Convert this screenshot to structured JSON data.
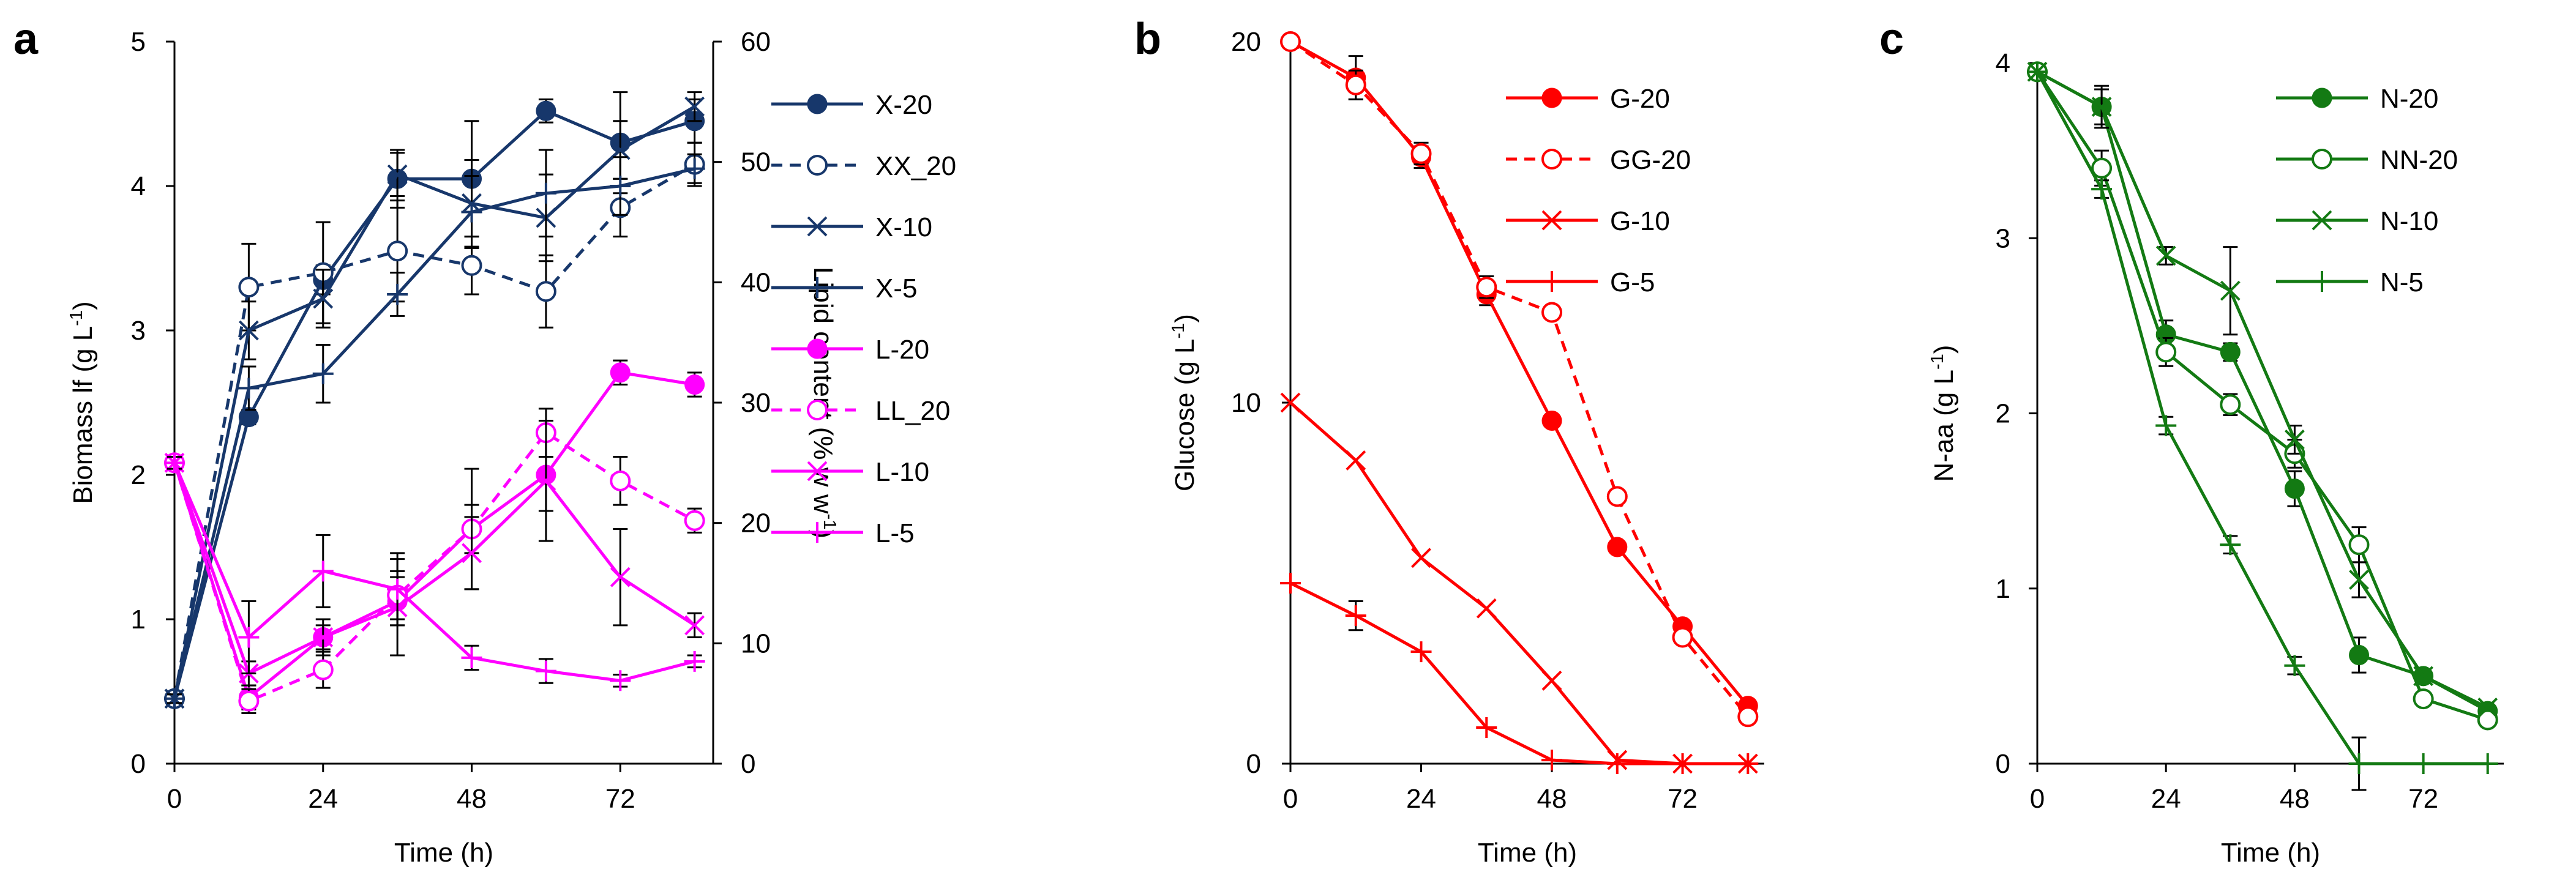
{
  "chart_data": [
    {
      "panel_label": "a",
      "type": "line",
      "xlabel": "Time (h)",
      "ylabel": "Biomass lf (g L-1)",
      "y2label": "Lipid content (% w w-1)",
      "x_ticks": [
        "0",
        "24",
        "48",
        "72"
      ],
      "y_ticks": [
        "0",
        "1",
        "2",
        "3",
        "4",
        "5"
      ],
      "y2_ticks": [
        "0",
        "10",
        "20",
        "30",
        "40",
        "50",
        "60"
      ],
      "xlim": [
        0,
        87
      ],
      "ylim": [
        0,
        5
      ],
      "y2lim": [
        0,
        60
      ],
      "x": [
        0,
        12,
        24,
        36,
        48,
        60,
        72,
        84
      ],
      "series": [
        {
          "name": "X-20",
          "axis": "left",
          "color": "#17376b",
          "dash": false,
          "marker": "filled-circle",
          "values": [
            0.45,
            2.4,
            3.35,
            4.05,
            4.05,
            4.52,
            4.3,
            4.45
          ],
          "errors": [
            0.03,
            0.05,
            0.1,
            0.2,
            0.4,
            0.08,
            0.35,
            0.15
          ]
        },
        {
          "name": "XX_20",
          "axis": "left",
          "color": "#17376b",
          "dash": true,
          "marker": "open-circle",
          "values": [
            0.45,
            3.3,
            3.4,
            3.55,
            3.45,
            3.27,
            3.85,
            4.15
          ],
          "errors": [
            0.03,
            0.3,
            0.35,
            0.35,
            0.2,
            0.25,
            0.2,
            0.15
          ]
        },
        {
          "name": "X-10",
          "axis": "left",
          "color": "#17376b",
          "dash": false,
          "marker": "x",
          "values": [
            0.45,
            3.0,
            3.22,
            4.08,
            3.88,
            3.78,
            4.25,
            4.55
          ],
          "errors": [
            0.03,
            0.2,
            0.2,
            0.15,
            0.3,
            0.3,
            0.2,
            0.1
          ]
        },
        {
          "name": "X-5",
          "axis": "left",
          "color": "#17376b",
          "dash": false,
          "marker": "plus",
          "values": [
            0.45,
            2.6,
            2.7,
            3.25,
            3.82,
            3.95,
            4.0,
            4.12
          ],
          "errors": [
            0.03,
            0.15,
            0.2,
            0.15,
            0.25,
            0.3,
            0.2,
            0.1
          ]
        },
        {
          "name": "L-20",
          "axis": "right",
          "color": "#ff00ff",
          "dash": false,
          "marker": "filled-circle",
          "values": [
            25,
            5.5,
            10.5,
            13.5,
            19.5,
            24,
            32.5,
            31.5
          ],
          "errors": [
            0.5,
            1,
            1.5,
            2,
            5,
            3,
            1,
            1
          ]
        },
        {
          "name": "LL_20",
          "axis": "right",
          "color": "#ff00ff",
          "dash": true,
          "marker": "open-circle",
          "values": [
            25,
            5.2,
            7.8,
            14,
            19.5,
            27.5,
            23.5,
            20.2
          ],
          "errors": [
            0.5,
            1,
            1.5,
            2,
            2,
            2,
            2,
            1
          ]
        },
        {
          "name": "L-10",
          "axis": "right",
          "color": "#ff00ff",
          "dash": false,
          "marker": "x",
          "values": [
            25,
            7.5,
            10.5,
            13,
            17.5,
            23.5,
            15.5,
            11.5
          ],
          "errors": [
            0.5,
            1,
            1,
            4,
            3,
            5,
            4,
            1
          ]
        },
        {
          "name": "L-5",
          "axis": "right",
          "color": "#ff00ff",
          "dash": false,
          "marker": "plus",
          "values": [
            25,
            10.5,
            16,
            14.5,
            8.8,
            7.7,
            6.9,
            8.5
          ],
          "errors": [
            0.5,
            3,
            3,
            3,
            1,
            1,
            0.5,
            0.5
          ]
        }
      ]
    },
    {
      "panel_label": "b",
      "type": "line",
      "xlabel": "Time (h)",
      "ylabel": "Glucose (g L-1)",
      "x_ticks": [
        "0",
        "24",
        "48",
        "72"
      ],
      "y_ticks": [
        "0",
        "10",
        "20"
      ],
      "xlim": [
        0,
        87
      ],
      "ylim": [
        0,
        20
      ],
      "x": [
        0,
        12,
        24,
        36,
        48,
        60,
        72,
        84
      ],
      "series": [
        {
          "name": "G-20",
          "color": "#ff0000",
          "dash": false,
          "marker": "filled-circle",
          "values": [
            20,
            19,
            16.8,
            13,
            9.5,
            6,
            3.8,
            1.6
          ],
          "errors": [
            0,
            0.6,
            0.3,
            0.3,
            0,
            0,
            0,
            0
          ]
        },
        {
          "name": "GG-20",
          "color": "#ff0000",
          "dash": true,
          "marker": "open-circle",
          "values": [
            20,
            18.8,
            16.9,
            13.2,
            12.5,
            7.4,
            3.5,
            1.3
          ],
          "errors": [
            0,
            0.4,
            0.3,
            0.3,
            0,
            0,
            0,
            0
          ]
        },
        {
          "name": "G-10",
          "color": "#ff0000",
          "dash": false,
          "marker": "x",
          "values": [
            10,
            8.4,
            5.7,
            4.3,
            2.3,
            0.1,
            0,
            0
          ],
          "errors": [
            0,
            0,
            0,
            0,
            0,
            0,
            0,
            0
          ]
        },
        {
          "name": "G-5",
          "color": "#ff0000",
          "dash": false,
          "marker": "plus",
          "values": [
            5,
            4.1,
            3.1,
            1.0,
            0.1,
            0,
            0,
            0
          ],
          "errors": [
            0,
            0.4,
            0,
            0,
            0,
            0,
            0,
            0
          ]
        }
      ]
    },
    {
      "panel_label": "c",
      "type": "line",
      "xlabel": "Time (h)",
      "ylabel": "N-aa (g L-1)",
      "x_ticks": [
        "0",
        "24",
        "48",
        "72"
      ],
      "y_ticks": [
        "0",
        "1",
        "2",
        "3",
        "4"
      ],
      "xlim": [
        0,
        87
      ],
      "ylim": [
        0,
        4
      ],
      "x": [
        0,
        12,
        24,
        36,
        48,
        60,
        72,
        84
      ],
      "series": [
        {
          "name": "N-20",
          "color": "#137a13",
          "dash": false,
          "marker": "filled-circle",
          "values": [
            3.95,
            3.75,
            2.45,
            2.35,
            1.57,
            0.62,
            0.5,
            0.3
          ],
          "errors": [
            0,
            0.1,
            0.08,
            0.05,
            0.1,
            0.1,
            0,
            0
          ]
        },
        {
          "name": "NN-20",
          "color": "#137a13",
          "dash": false,
          "marker": "open-circle",
          "values": [
            3.95,
            3.4,
            2.35,
            2.05,
            1.77,
            1.25,
            0.37,
            0.25
          ],
          "errors": [
            0,
            0.1,
            0.08,
            0.06,
            0.08,
            0.1,
            0,
            0
          ]
        },
        {
          "name": "N-10",
          "color": "#137a13",
          "dash": false,
          "marker": "x",
          "values": [
            3.95,
            3.75,
            2.9,
            2.7,
            1.85,
            1.05,
            0.5,
            0.32
          ],
          "errors": [
            0,
            0.12,
            0.05,
            0.25,
            0.08,
            0.1,
            0,
            0
          ]
        },
        {
          "name": "N-5",
          "color": "#137a13",
          "dash": false,
          "marker": "plus",
          "values": [
            3.95,
            3.28,
            1.93,
            1.25,
            0.56,
            0,
            0,
            0
          ],
          "errors": [
            0,
            0.05,
            0.05,
            0.05,
            0.05,
            0.15,
            0,
            0
          ]
        }
      ]
    }
  ]
}
